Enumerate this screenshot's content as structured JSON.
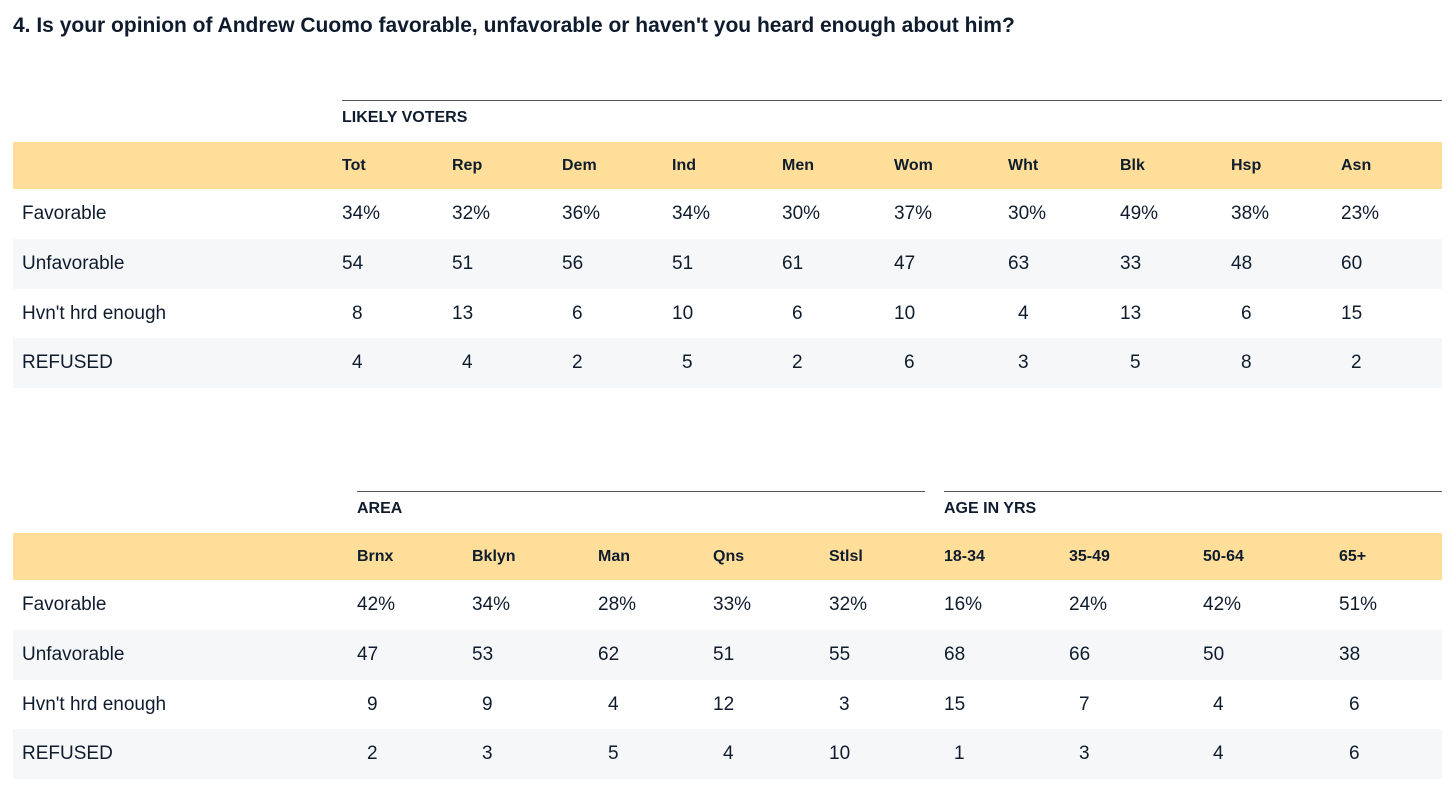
{
  "question": "4. Is your opinion of Andrew Cuomo favorable, unfavorable or haven't you heard enough about him?",
  "table1": {
    "group_label": "LIKELY VOTERS",
    "columns": [
      "Tot",
      "Rep",
      "Dem",
      "Ind",
      "Men",
      "Wom",
      "Wht",
      "Blk",
      "Hsp",
      "Asn"
    ],
    "rows": [
      {
        "label": "Favorable",
        "values": [
          "34%",
          "32%",
          "36%",
          "34%",
          "30%",
          "37%",
          "30%",
          "49%",
          "38%",
          "23%"
        ]
      },
      {
        "label": "Unfavorable",
        "values": [
          "54",
          "51",
          "56",
          "51",
          "61",
          "47",
          "63",
          "33",
          "48",
          "60"
        ]
      },
      {
        "label": "Hvn't hrd enough",
        "values": [
          "8",
          "13",
          "6",
          "10",
          "6",
          "10",
          "4",
          "13",
          "6",
          "15"
        ]
      },
      {
        "label": "REFUSED",
        "values": [
          "4",
          "4",
          "2",
          "5",
          "2",
          "6",
          "3",
          "5",
          "8",
          "2"
        ]
      }
    ]
  },
  "table2": {
    "groups": [
      {
        "label": "AREA"
      },
      {
        "label": "AGE IN YRS"
      }
    ],
    "columns": [
      "Brnx",
      "Bklyn",
      "Man",
      "Qns",
      "Stlsl",
      "18-34",
      "35-49",
      "50-64",
      "65+"
    ],
    "rows": [
      {
        "label": "Favorable",
        "values": [
          "42%",
          "34%",
          "28%",
          "33%",
          "32%",
          "16%",
          "24%",
          "42%",
          "51%"
        ]
      },
      {
        "label": "Unfavorable",
        "values": [
          "47",
          "53",
          "62",
          "51",
          "55",
          "68",
          "66",
          "50",
          "38"
        ]
      },
      {
        "label": "Hvn't hrd enough",
        "values": [
          "9",
          "9",
          "4",
          "12",
          "3",
          "15",
          "7",
          "4",
          "6"
        ]
      },
      {
        "label": "REFUSED",
        "values": [
          "2",
          "3",
          "5",
          "4",
          "10",
          "1",
          "3",
          "4",
          "6"
        ]
      }
    ]
  },
  "colors": {
    "header_band": "#fede98",
    "row_shade": "#f6f7f8",
    "text": "#0f1c2e"
  }
}
